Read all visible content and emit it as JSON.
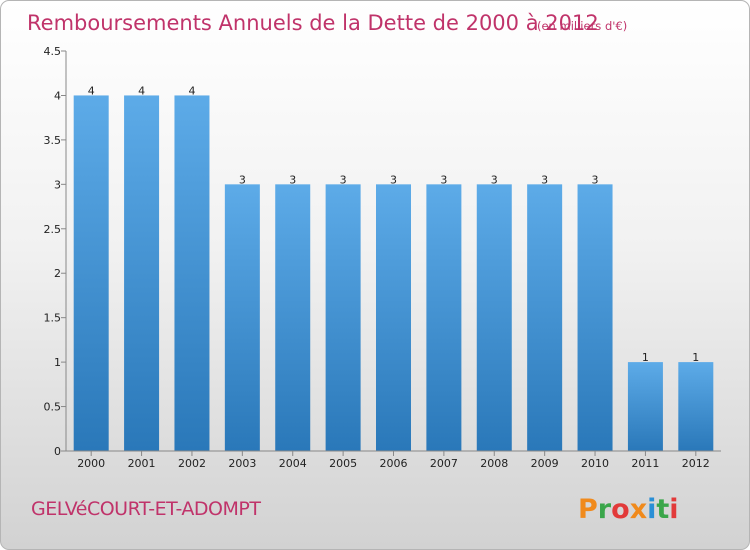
{
  "chart_data": {
    "type": "bar",
    "title": "Remboursements Annuels de la Dette de 2000 à 2012",
    "subtitle": "(en milliers d'€)",
    "categories": [
      "2000",
      "2001",
      "2002",
      "2003",
      "2004",
      "2005",
      "2006",
      "2007",
      "2008",
      "2009",
      "2010",
      "2011",
      "2012"
    ],
    "values": [
      4,
      4,
      4,
      3,
      3,
      3,
      3,
      3,
      3,
      3,
      3,
      1,
      1
    ],
    "ylim": [
      0,
      4.5
    ],
    "yticks": [
      "0",
      "0.5",
      "1",
      "1.5",
      "2",
      "2.5",
      "3",
      "3.5",
      "4",
      "4.5"
    ],
    "grid": false,
    "bar_color_top": "#5dabe8",
    "bar_color_bottom": "#2a78b9"
  },
  "footer": {
    "commune": "GELVéCOURT-ET-ADOMPT",
    "logo_text": "Proxiti",
    "logo_colors": [
      "#f08a1c",
      "#3aa64a",
      "#e23a3a",
      "#f08a1c",
      "#2a8fd6",
      "#3aa64a",
      "#e23a3a"
    ]
  }
}
